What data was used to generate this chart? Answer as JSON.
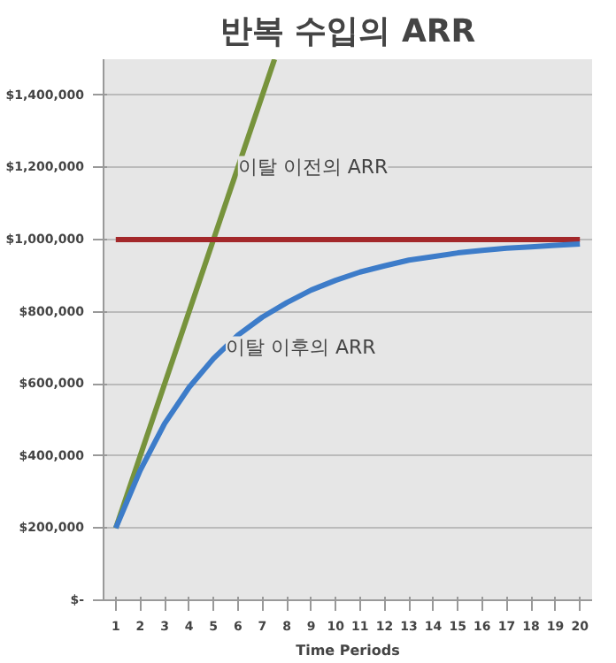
{
  "chart_data": {
    "type": "line",
    "title": "반복 수입의 ARR",
    "xlabel": "Time Periods",
    "xlim": [
      0.5,
      20.5
    ],
    "xticks": [
      1,
      2,
      3,
      4,
      5,
      6,
      7,
      8,
      9,
      10,
      11,
      12,
      13,
      14,
      15,
      16,
      17,
      18,
      19,
      20
    ],
    "ylim": [
      0,
      1500000
    ],
    "yticks": [
      {
        "value": 0,
        "label": "$-"
      },
      {
        "value": 200000,
        "label": "$200,000"
      },
      {
        "value": 400000,
        "label": "$400,000"
      },
      {
        "value": 600000,
        "label": "$600,000"
      },
      {
        "value": 800000,
        "label": "$800,000"
      },
      {
        "value": 1000000,
        "label": "$1,000,000"
      },
      {
        "value": 1200000,
        "label": "$1,200,000"
      },
      {
        "value": 1400000,
        "label": "$1,400,000"
      }
    ],
    "grid": "y",
    "marker": "none",
    "line_style": "solid",
    "series": [
      {
        "color": "#77933c",
        "x": [
          1,
          7.5
        ],
        "values": [
          200000,
          1500000
        ]
      },
      {
        "color": "#a3282a",
        "x": [
          1,
          20
        ],
        "values": [
          1000000,
          1000000
        ]
      },
      {
        "color": "#3d7cc9",
        "x": [
          1,
          2,
          3,
          4,
          5,
          6,
          7,
          8,
          9,
          10,
          11,
          12,
          13,
          14,
          15,
          16,
          17,
          18,
          19,
          20
        ],
        "values": [
          200000,
          360000,
          490000,
          590000,
          670000,
          735000,
          785000,
          825000,
          860000,
          887000,
          910000,
          927000,
          943000,
          953000,
          963000,
          970000,
          976000,
          980000,
          984000,
          988000
        ]
      }
    ],
    "annotations": [
      {
        "text": "이탈 이전의 ARR",
        "x": 6,
        "y": 1200000
      },
      {
        "text": "이탈 이후의 ARR",
        "x": 5.5,
        "y": 700000
      }
    ]
  }
}
